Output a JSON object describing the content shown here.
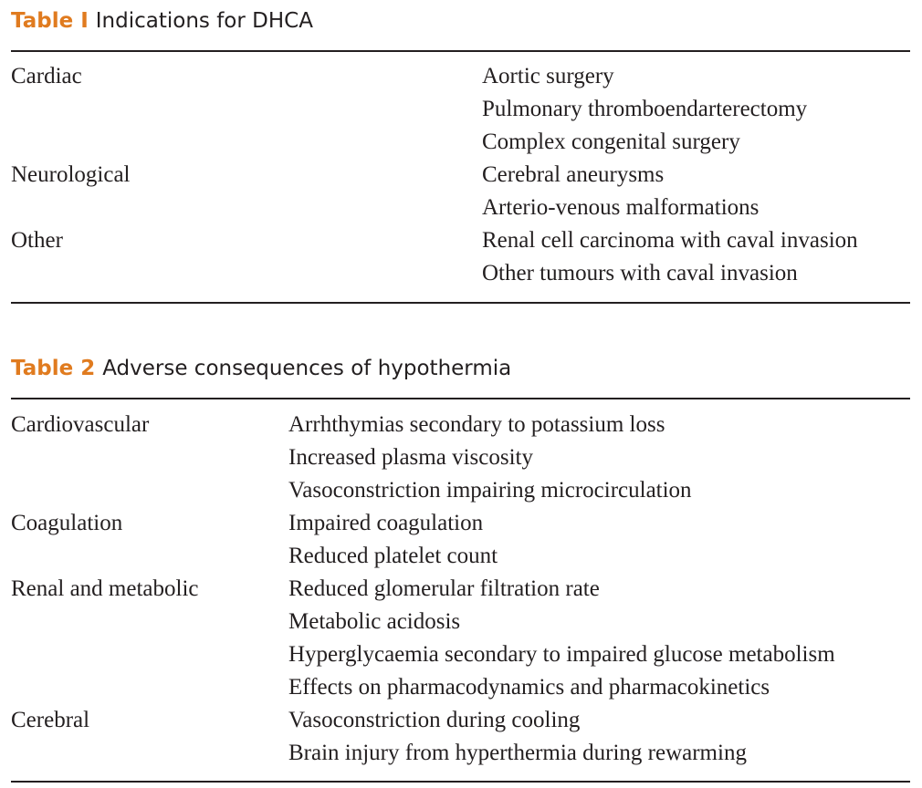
{
  "table1": {
    "label": "Table I",
    "title": "Indications for DHCA",
    "rows": [
      {
        "category": "Cardiac",
        "item": "Aortic surgery"
      },
      {
        "category": "",
        "item": "Pulmonary thromboendarterectomy"
      },
      {
        "category": "",
        "item": "Complex congenital surgery"
      },
      {
        "category": "Neurological",
        "item": "Cerebral aneurysms"
      },
      {
        "category": "",
        "item": "Arterio-venous malformations"
      },
      {
        "category": "Other",
        "item": "Renal cell carcinoma with caval invasion"
      },
      {
        "category": "",
        "item": "Other tumours with caval invasion"
      }
    ]
  },
  "table2": {
    "label": "Table 2",
    "title": "Adverse consequences of hypothermia",
    "rows": [
      {
        "category": "Cardiovascular",
        "item": "Arrhthymias secondary to potassium loss"
      },
      {
        "category": "",
        "item": "Increased plasma viscosity"
      },
      {
        "category": "",
        "item": "Vasoconstriction impairing microcirculation"
      },
      {
        "category": "Coagulation",
        "item": "Impaired coagulation"
      },
      {
        "category": "",
        "item": "Reduced platelet count"
      },
      {
        "category": "Renal and metabolic",
        "item": "Reduced glomerular filtration rate"
      },
      {
        "category": "",
        "item": "Metabolic acidosis"
      },
      {
        "category": "",
        "item": "Hyperglycaemia secondary to impaired glucose metabolism"
      },
      {
        "category": "",
        "item": "Effects on pharmacodynamics and pharmacokinetics"
      },
      {
        "category": "Cerebral",
        "item": "Vasoconstriction during cooling"
      },
      {
        "category": "",
        "item": "Brain injury from hyperthermia during rewarming"
      }
    ]
  }
}
